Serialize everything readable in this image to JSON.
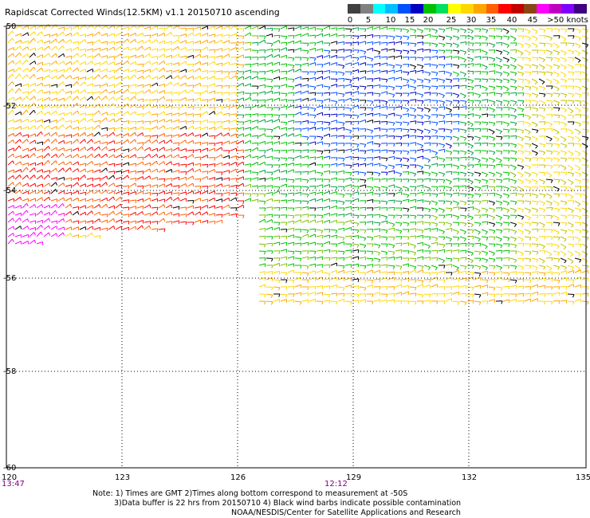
{
  "title": "Rapidscat Corrected Winds(12.5KM) v1.1 20150710 ascending",
  "scale": {
    "colors": [
      "#404040",
      "#808080",
      "#00ffff",
      "#00bfff",
      "#0050ff",
      "#0000c0",
      "#00c000",
      "#00e060",
      "#ffff00",
      "#ffd700",
      "#ffa500",
      "#ff6000",
      "#ff0000",
      "#c00000",
      "#8b4513",
      "#ff00ff",
      "#c000c0",
      "#8000ff",
      "#400080"
    ],
    "labels": [
      "0",
      "5",
      "10",
      "15",
      "20",
      "25",
      "30",
      "35",
      "40",
      "45",
      ">50 knots"
    ]
  },
  "axes": {
    "lat_labels": [
      "-50",
      "-52",
      "-54",
      "-56",
      "-58",
      "-60"
    ],
    "lon_labels": [
      "120",
      "123",
      "126",
      "129",
      "132",
      "135"
    ]
  },
  "times": {
    "left": "13:47",
    "middle": "12:12"
  },
  "notes": {
    "line1": "Note: 1) Times are GMT 2)Times along bottom correspond to measurement at -50S",
    "line2": "3)Data buffer is 22 hrs from 20150710 4) Black wind barbs indicate possible contamination",
    "line3": "NOAA/NESDIS/Center for Satellite Applications and Research"
  }
}
